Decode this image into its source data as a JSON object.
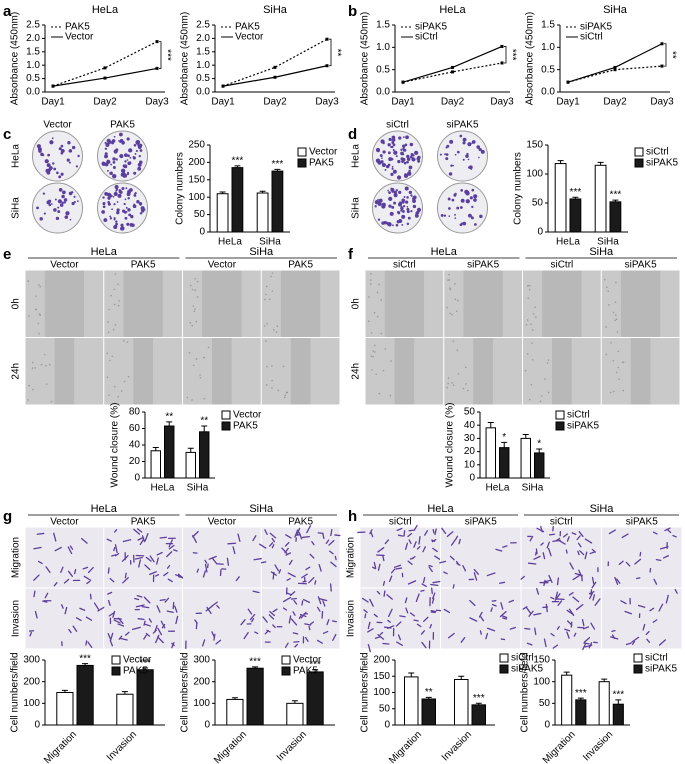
{
  "panels": [
    {
      "letter": "a"
    },
    {
      "letter": "b"
    },
    {
      "letter": "c",
      "columns": [
        "Vector",
        "PAK5"
      ],
      "rows": [
        "HeLa",
        "SiHa"
      ]
    },
    {
      "letter": "d",
      "columns": [
        "siCtrl",
        "siPAK5"
      ],
      "rows": [
        "HeLa",
        "SiHa"
      ]
    },
    {
      "letter": "e",
      "groups": [
        "HeLa",
        "SiHa"
      ],
      "columns": [
        "Vector",
        "PAK5",
        "Vector",
        "PAK5"
      ],
      "rows": [
        "0h",
        "24h"
      ]
    },
    {
      "letter": "f",
      "groups": [
        "HeLa",
        "SiHa"
      ],
      "columns": [
        "siCtrl",
        "siPAK5",
        "siCtrl",
        "siPAK5"
      ],
      "rows": [
        "0h",
        "24h"
      ]
    },
    {
      "letter": "g",
      "groups": [
        "HeLa",
        "SiHa"
      ],
      "columns": [
        "Vector",
        "PAK5",
        "Vector",
        "PAK5"
      ],
      "rows": [
        "Migration",
        "Invasion"
      ]
    },
    {
      "letter": "h",
      "groups": [
        "HeLa",
        "SiHa"
      ],
      "columns": [
        "siCtrl",
        "siPAK5",
        "siCtrl",
        "siPAK5"
      ],
      "rows": [
        "Migration",
        "Invasion"
      ]
    }
  ],
  "chart_data": [
    {
      "type": "line",
      "title": "HeLa",
      "ylabel": "Absorbance (450nm)",
      "categories": [
        "Day1",
        "Day2",
        "Day3"
      ],
      "series": [
        {
          "name": "PAK5",
          "color": "#000000",
          "line_style": "dotted",
          "values": [
            0.22,
            0.9,
            1.88
          ]
        },
        {
          "name": "Vector",
          "color": "#000000",
          "line_style": "solid",
          "values": [
            0.22,
            0.52,
            0.88
          ]
        }
      ],
      "ylim": [
        0,
        2.5
      ],
      "yticks": [
        {
          "value": 0,
          "label": "0.0"
        },
        {
          "value": 0.5,
          "label": "0.5"
        },
        {
          "value": 1,
          "label": "1.0"
        },
        {
          "value": 1.5,
          "label": "1.5"
        },
        {
          "value": 2,
          "label": "2.0"
        },
        {
          "value": 2.5,
          "label": "2.5"
        }
      ],
      "annotation": "***"
    },
    {
      "type": "line",
      "title": "SiHa",
      "ylabel": "Absorbance (450nm)",
      "categories": [
        "Day1",
        "Day2",
        "Day3"
      ],
      "series": [
        {
          "name": "PAK5",
          "color": "#000000",
          "line_style": "dotted",
          "values": [
            0.22,
            0.92,
            1.97
          ]
        },
        {
          "name": "Vector",
          "color": "#000000",
          "line_style": "solid",
          "values": [
            0.22,
            0.55,
            0.98
          ]
        }
      ],
      "ylim": [
        0,
        2.5
      ],
      "yticks": [
        {
          "value": 0,
          "label": "0.0"
        },
        {
          "value": 0.5,
          "label": "0.5"
        },
        {
          "value": 1,
          "label": "1.0"
        },
        {
          "value": 1.5,
          "label": "1.5"
        },
        {
          "value": 2,
          "label": "2.0"
        },
        {
          "value": 2.5,
          "label": "2.5"
        }
      ],
      "annotation": "**"
    },
    {
      "type": "line",
      "title": "HeLa",
      "ylabel": "Absorbance (450nm)",
      "categories": [
        "Day1",
        "Day2",
        "Day3"
      ],
      "series": [
        {
          "name": "siPAK5",
          "color": "#000000",
          "line_style": "dotted",
          "values": [
            0.22,
            0.45,
            0.65
          ]
        },
        {
          "name": "siCtrl",
          "color": "#000000",
          "line_style": "solid",
          "values": [
            0.22,
            0.55,
            1.02
          ]
        }
      ],
      "ylim": [
        0,
        1.5
      ],
      "yticks": [
        {
          "value": 0,
          "label": "0.0"
        },
        {
          "value": 0.5,
          "label": "0.5"
        },
        {
          "value": 1,
          "label": "1.0"
        },
        {
          "value": 1.5,
          "label": "1.5"
        }
      ],
      "annotation": "***"
    },
    {
      "type": "line",
      "title": "SiHa",
      "ylabel": "Absorbance (450nm)",
      "categories": [
        "Day1",
        "Day2",
        "Day3"
      ],
      "series": [
        {
          "name": "siPAK5",
          "color": "#000000",
          "line_style": "dotted",
          "values": [
            0.22,
            0.5,
            0.58
          ]
        },
        {
          "name": "siCtrl",
          "color": "#000000",
          "line_style": "solid",
          "values": [
            0.22,
            0.55,
            1.08
          ]
        }
      ],
      "ylim": [
        0,
        1.5
      ],
      "yticks": [
        {
          "value": 0,
          "label": "0.0"
        },
        {
          "value": 0.5,
          "label": "0.5"
        },
        {
          "value": 1,
          "label": "1.0"
        },
        {
          "value": 1.5,
          "label": "1.5"
        }
      ],
      "annotation": "**"
    },
    {
      "type": "bar",
      "ylabel": "Colony numbers",
      "categories": [
        "HeLa",
        "SiHa"
      ],
      "series": [
        {
          "name": "Vector",
          "color": "#ffffff",
          "values": [
            110,
            112
          ],
          "errors": [
            5,
            5
          ]
        },
        {
          "name": "PAK5",
          "color": "#1a1a1a",
          "values": [
            185,
            175
          ],
          "errors": [
            5,
            5
          ]
        }
      ],
      "ylim": [
        0,
        250
      ],
      "yticks": [
        0,
        50,
        100,
        150,
        200,
        250
      ],
      "significance": [
        "***",
        "***"
      ]
    },
    {
      "type": "bar",
      "ylabel": "Colony numbers",
      "categories": [
        "HeLa",
        "SiHa"
      ],
      "series": [
        {
          "name": "siCtrl",
          "color": "#ffffff",
          "values": [
            118,
            115
          ],
          "errors": [
            5,
            5
          ]
        },
        {
          "name": "siPAK5",
          "color": "#1a1a1a",
          "values": [
            57,
            52
          ],
          "errors": [
            3,
            3
          ]
        }
      ],
      "ylim": [
        0,
        150
      ],
      "yticks": [
        0,
        50,
        100,
        150
      ],
      "significance": [
        "***",
        "***"
      ]
    },
    {
      "type": "bar",
      "ylabel": "Wound closure (%)",
      "categories": [
        "HeLa",
        "SiHa"
      ],
      "series": [
        {
          "name": "Vector",
          "color": "#ffffff",
          "values": [
            33,
            31
          ],
          "errors": [
            4,
            5
          ]
        },
        {
          "name": "PAK5",
          "color": "#1a1a1a",
          "values": [
            63,
            56
          ],
          "errors": [
            5,
            7
          ]
        }
      ],
      "ylim": [
        0,
        80
      ],
      "yticks": [
        0,
        20,
        40,
        60,
        80
      ],
      "significance": [
        "**",
        "**"
      ]
    },
    {
      "type": "bar",
      "ylabel": "Wound closure (%)",
      "categories": [
        "HeLa",
        "SiHa"
      ],
      "series": [
        {
          "name": "siCtrl",
          "color": "#ffffff",
          "values": [
            38,
            30
          ],
          "errors": [
            4,
            3
          ]
        },
        {
          "name": "siPAK5",
          "color": "#1a1a1a",
          "values": [
            23,
            19
          ],
          "errors": [
            4,
            3
          ]
        }
      ],
      "ylim": [
        0,
        50
      ],
      "yticks": [
        0,
        10,
        20,
        30,
        40,
        50
      ],
      "significance": [
        "*",
        "*"
      ]
    },
    {
      "type": "bar",
      "ylabel": "Cell numbers/field",
      "categories": [
        "Migration",
        "Invasion"
      ],
      "series": [
        {
          "name": "Vector",
          "color": "#ffffff",
          "values": [
            150,
            142
          ],
          "errors": [
            10,
            12
          ]
        },
        {
          "name": "PAK5",
          "color": "#1a1a1a",
          "values": [
            275,
            255
          ],
          "errors": [
            8,
            8
          ]
        }
      ],
      "ylim": [
        0,
        300
      ],
      "yticks": [
        0,
        100,
        200,
        300
      ],
      "significance": [
        "***",
        "***"
      ]
    },
    {
      "type": "bar",
      "ylabel": "Cell numbers/field",
      "categories": [
        "Migration",
        "Invasion"
      ],
      "series": [
        {
          "name": "Vector",
          "color": "#ffffff",
          "values": [
            118,
            100
          ],
          "errors": [
            8,
            12
          ]
        },
        {
          "name": "PAK5",
          "color": "#1a1a1a",
          "values": [
            262,
            245
          ],
          "errors": [
            6,
            10
          ]
        }
      ],
      "ylim": [
        0,
        300
      ],
      "yticks": [
        0,
        100,
        200,
        300
      ],
      "significance": [
        "***",
        "***"
      ]
    },
    {
      "type": "bar",
      "ylabel": "Cell numbers/field",
      "categories": [
        "Migration",
        "Invasion"
      ],
      "series": [
        {
          "name": "siCtrl",
          "color": "#ffffff",
          "values": [
            148,
            140
          ],
          "errors": [
            12,
            10
          ]
        },
        {
          "name": "siPAK5",
          "color": "#1a1a1a",
          "values": [
            80,
            62
          ],
          "errors": [
            5,
            5
          ]
        }
      ],
      "ylim": [
        0,
        200
      ],
      "yticks": [
        0,
        50,
        100,
        150,
        200
      ],
      "significance": [
        "**",
        "***"
      ]
    },
    {
      "type": "bar",
      "ylabel": "Cell numbers/field",
      "categories": [
        "Migration",
        "Invasion"
      ],
      "series": [
        {
          "name": "siCtrl",
          "color": "#ffffff",
          "values": [
            115,
            100
          ],
          "errors": [
            7,
            6
          ]
        },
        {
          "name": "siPAK5",
          "color": "#1a1a1a",
          "values": [
            58,
            48
          ],
          "errors": [
            4,
            10
          ]
        }
      ],
      "ylim": [
        0,
        150
      ],
      "yticks": [
        0,
        50,
        100,
        150
      ],
      "significance": [
        "***",
        "***"
      ]
    }
  ]
}
